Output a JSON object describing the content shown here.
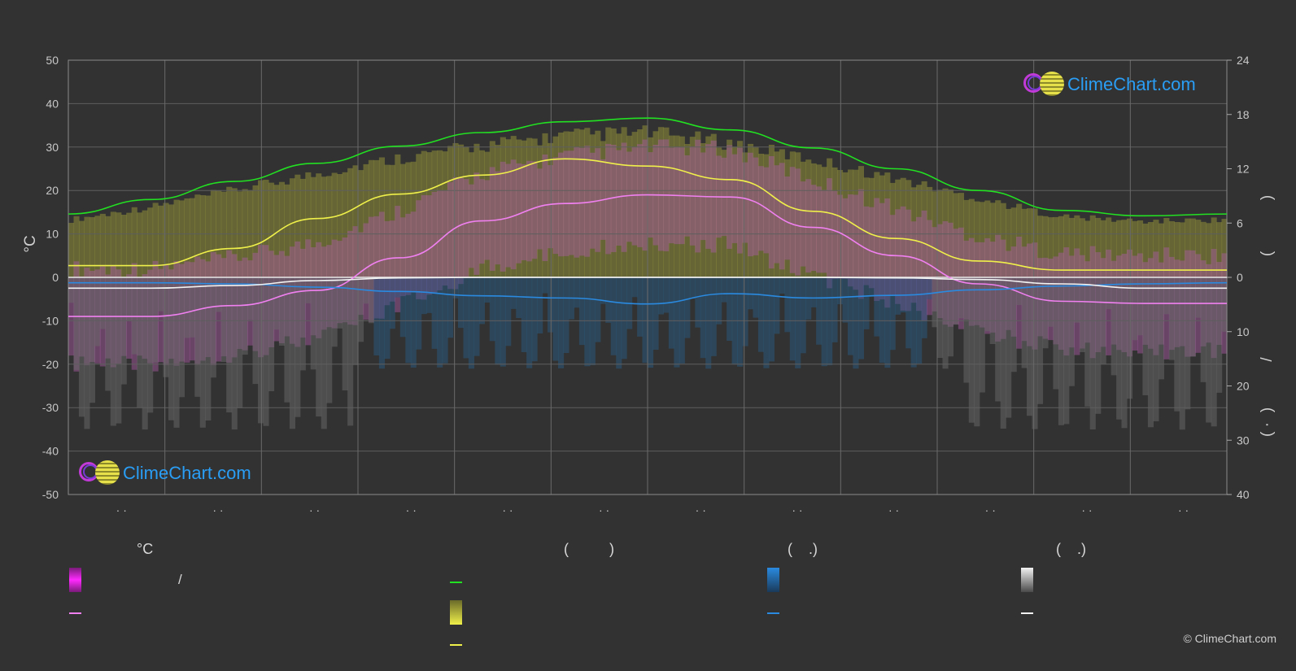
{
  "chart_data": {
    "type": "area",
    "left_axis": {
      "unit": "°C",
      "ticks": [
        "50",
        "40",
        "30",
        "20",
        "10",
        "0",
        "-10",
        "-20",
        "-30",
        "-40",
        "-50"
      ],
      "ylim": [
        -50,
        50
      ]
    },
    "right_axis": {
      "ticks_top": [
        "24",
        "18",
        "12",
        "6",
        "0"
      ],
      "ticks_bottom": [
        "10",
        "20",
        "30",
        "40"
      ],
      "label_fragments": [
        ")",
        "(",
        "/",
        ")",
        "( ·"
      ]
    },
    "x_tick_labels": [
      "· ·",
      "· ·",
      "· ·",
      "· ·",
      "· ·",
      "· ·",
      "· ·",
      "· ·",
      "· ·",
      "· ·",
      "· ·",
      "· ·"
    ],
    "months": 12,
    "grid": true,
    "series": [
      {
        "name": "",
        "kind": "line",
        "color": "#22e022",
        "axis": "right",
        "values": [
          7.0,
          8.6,
          10.6,
          12.6,
          14.5,
          16.0,
          17.2,
          17.6,
          16.3,
          14.3,
          12.0,
          9.6,
          7.4,
          6.8,
          7.0
        ]
      },
      {
        "name": "",
        "kind": "line",
        "color": "#f0f04a",
        "axis": "right",
        "values": [
          1.3,
          1.3,
          3.2,
          6.5,
          9.2,
          11.3,
          13.1,
          12.3,
          10.8,
          7.3,
          4.3,
          1.8,
          0.8,
          0.8,
          0.8
        ]
      },
      {
        "name": "",
        "kind": "line",
        "color": "#f080f0",
        "axis": "left",
        "values": [
          -9.0,
          -9.0,
          -6.5,
          -3.0,
          4.5,
          13.0,
          17.0,
          19.0,
          18.5,
          11.5,
          5.0,
          -1.5,
          -5.5,
          -6.0,
          -6.0
        ]
      },
      {
        "name": "",
        "kind": "line",
        "color": "#2a8ae0",
        "axis": "right",
        "values": [
          1.0,
          1.0,
          1.2,
          1.8,
          2.6,
          3.4,
          3.8,
          4.9,
          3.0,
          3.8,
          3.3,
          2.3,
          1.6,
          1.2,
          1.0
        ]
      },
      {
        "name": "",
        "kind": "line",
        "color": "#f2f2f2",
        "axis": "right",
        "values": [
          2.0,
          2.0,
          1.5,
          0.6,
          0.1,
          0.0,
          0.0,
          0.0,
          0.0,
          0.0,
          0.1,
          0.4,
          1.2,
          2.0,
          2.0
        ]
      }
    ]
  },
  "legend": {
    "col1": {
      "head": "°C",
      "item1": "/"
    },
    "col2": {
      "head": "(          )"
    },
    "col3": {
      "head": "(    .)"
    },
    "col4": {
      "head": "(    .)"
    }
  },
  "branding": {
    "logo_text": "ClimeChart.com",
    "copyright": "© ClimeChart.com"
  },
  "colors": {
    "background": "#323232",
    "grid": "#5a5a5a",
    "daylight_band": "#8f8f3a",
    "temp_band": "#b05aa8",
    "precip_band": "#2a5a80",
    "snow_band": "#6a6a6a"
  }
}
